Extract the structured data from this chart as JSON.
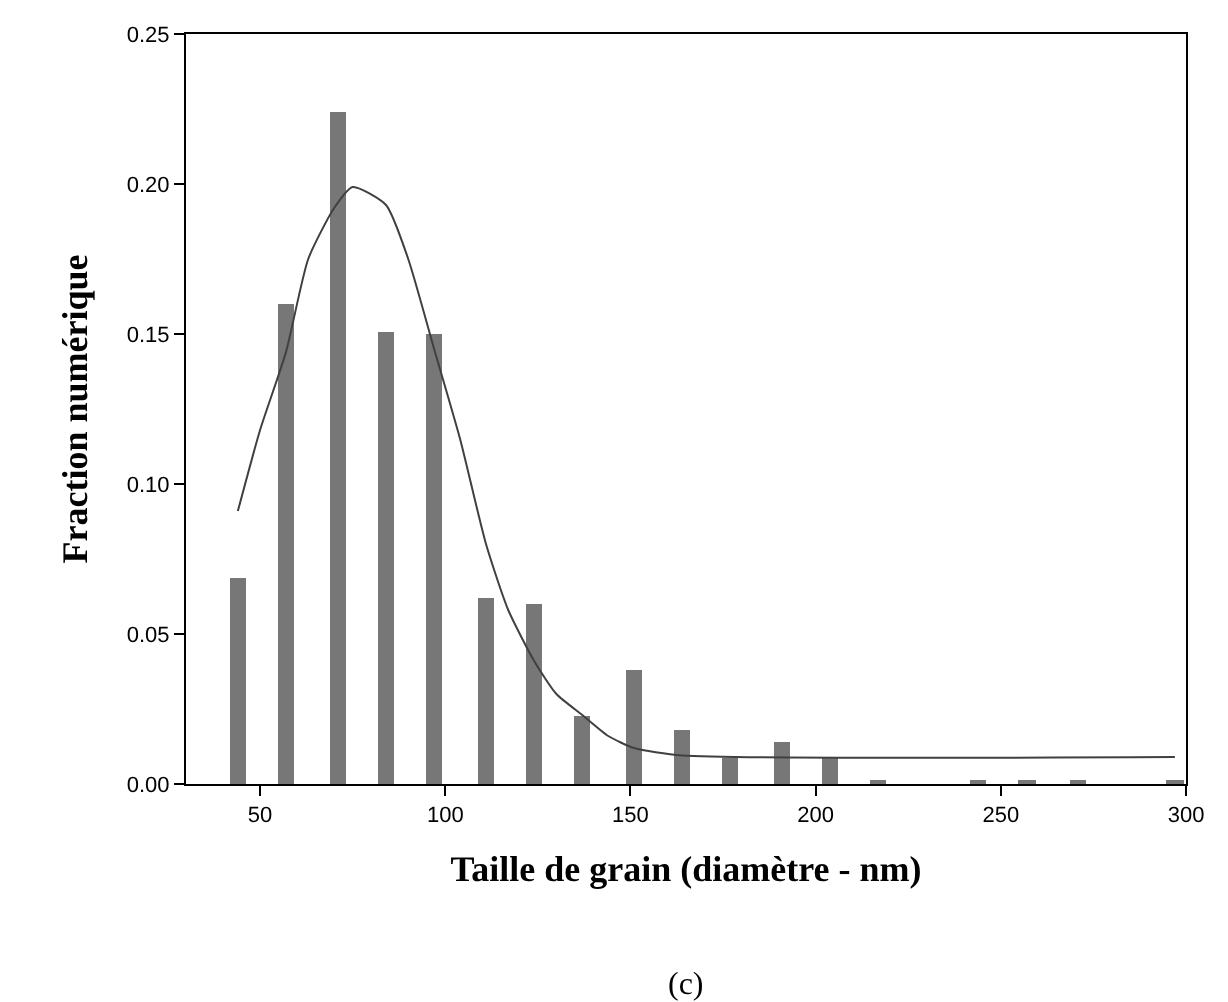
{
  "chart_data": {
    "type": "bar",
    "xlabel": "Taille de grain (diamètre - nm)",
    "ylabel": "Fraction numérique",
    "annotations": [
      "(c)"
    ],
    "x": [
      44,
      57,
      71,
      84,
      97,
      111,
      124,
      137,
      151,
      164,
      177,
      191,
      204,
      217,
      244,
      257,
      271,
      297
    ],
    "series": [
      {
        "color": "#777777",
        "values": [
          0.069,
          0.16,
          0.224,
          0.151,
          0.15,
          0.062,
          0.06,
          0.023,
          0.038,
          0.018,
          0.009,
          0.014,
          0.009,
          0.0015,
          0.0015,
          0.0015,
          0.0015,
          0.0015
        ]
      },
      {
        "type": "line",
        "color": "#404040",
        "marker": "none",
        "x": [
          44,
          50,
          57,
          63,
          70,
          75,
          84,
          90,
          97,
          104,
          111,
          117,
          124,
          130,
          137,
          144,
          151,
          164,
          297
        ],
        "values": [
          0.091,
          0.118,
          0.144,
          0.175,
          0.192,
          0.199,
          0.193,
          0.175,
          0.145,
          0.115,
          0.08,
          0.058,
          0.041,
          0.03,
          0.023,
          0.016,
          0.012,
          0.0095,
          0.009
        ]
      }
    ],
    "xlim": [
      30,
      300
    ],
    "xticks": [
      50,
      100,
      150,
      200,
      250,
      300
    ],
    "ylim": [
      0,
      0.25
    ],
    "yticks": [
      {
        "value": 0,
        "label": "0.00"
      },
      {
        "value": 0.05,
        "label": "0.05"
      },
      {
        "value": 0.1,
        "label": "0.10"
      },
      {
        "value": 0.15,
        "label": "0.15"
      },
      {
        "value": 0.2,
        "label": "0.20"
      },
      {
        "value": 0.25,
        "label": "0.25"
      }
    ]
  }
}
